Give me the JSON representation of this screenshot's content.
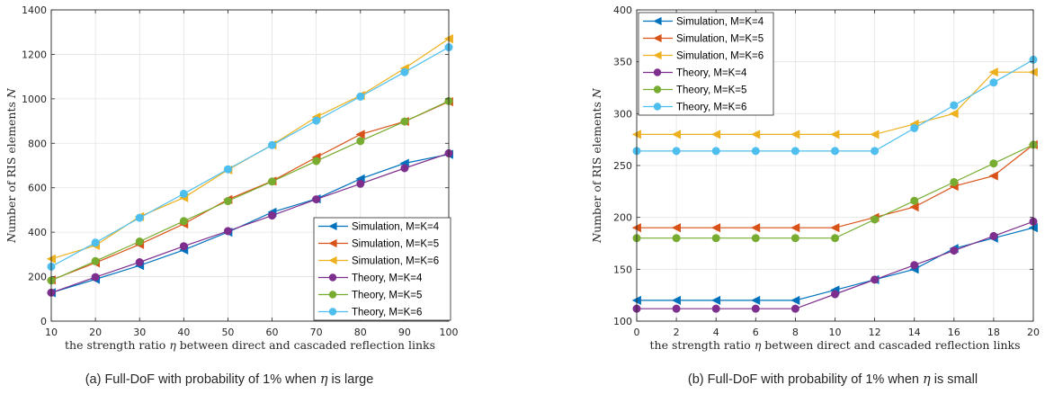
{
  "chart_data": [
    {
      "type": "line",
      "caption": "(a) Full-DoF with probability of 1% when η is large",
      "xlabel": "the strength ratio η between direct and cascaded reflection links",
      "ylabel": "Number of RIS elements N",
      "xlim": [
        10,
        100
      ],
      "ylim": [
        0,
        1400
      ],
      "xticks": [
        10,
        20,
        30,
        40,
        50,
        60,
        70,
        80,
        90,
        100
      ],
      "yticks": [
        0,
        200,
        400,
        600,
        800,
        1000,
        1200,
        1400
      ],
      "grid": true,
      "legend_position": "bottom-right",
      "x": [
        10,
        20,
        30,
        40,
        50,
        60,
        70,
        80,
        90,
        100
      ],
      "series": [
        {
          "name": "Simulation, M=K=4",
          "marker": "triangle-left",
          "color": "#0072BD",
          "values": [
            128,
            188,
            250,
            320,
            400,
            490,
            550,
            640,
            710,
            750
          ]
        },
        {
          "name": "Simulation, M=K=5",
          "marker": "triangle-left",
          "color": "#D95319",
          "values": [
            185,
            262,
            345,
            437,
            547,
            630,
            737,
            840,
            898,
            987
          ]
        },
        {
          "name": "Simulation, M=K=6",
          "marker": "triangle-left",
          "color": "#EDB120",
          "values": [
            280,
            340,
            470,
            555,
            680,
            793,
            918,
            1015,
            1137,
            1270
          ]
        },
        {
          "name": "Theory, M=K=4",
          "marker": "circle",
          "color": "#7E2F8E",
          "values": [
            128,
            198,
            265,
            337,
            405,
            475,
            548,
            618,
            688,
            755
          ]
        },
        {
          "name": "Theory, M=K=5",
          "marker": "circle",
          "color": "#77AC30",
          "values": [
            183,
            270,
            358,
            450,
            540,
            628,
            720,
            810,
            898,
            990
          ]
        },
        {
          "name": "Theory, M=K=6",
          "marker": "circle",
          "color": "#4DBEEE",
          "values": [
            245,
            353,
            465,
            573,
            683,
            792,
            902,
            1010,
            1120,
            1232
          ]
        }
      ]
    },
    {
      "type": "line",
      "caption": "(b) Full-DoF with probability of 1% when η is small",
      "xlabel": "the strength ratio η between direct and cascaded reflection links",
      "ylabel": "Number of RIS elements N",
      "xlim": [
        0,
        20
      ],
      "ylim": [
        100,
        400
      ],
      "xticks": [
        0,
        2,
        4,
        6,
        8,
        10,
        12,
        14,
        16,
        18,
        20
      ],
      "yticks": [
        100,
        150,
        200,
        250,
        300,
        350,
        400
      ],
      "grid": true,
      "legend_position": "top-left",
      "x": [
        0,
        2,
        4,
        6,
        8,
        10,
        12,
        14,
        16,
        18,
        20
      ],
      "series": [
        {
          "name": "Simulation, M=K=4",
          "marker": "triangle-left",
          "color": "#0072BD",
          "values": [
            120,
            120,
            120,
            120,
            120,
            130,
            140,
            150,
            170,
            180,
            190
          ]
        },
        {
          "name": "Simulation, M=K=5",
          "marker": "triangle-left",
          "color": "#D95319",
          "values": [
            190,
            190,
            190,
            190,
            190,
            190,
            200,
            210,
            230,
            240,
            270
          ]
        },
        {
          "name": "Simulation, M=K=6",
          "marker": "triangle-left",
          "color": "#EDB120",
          "values": [
            280,
            280,
            280,
            280,
            280,
            280,
            280,
            290,
            300,
            340,
            340
          ]
        },
        {
          "name": "Theory, M=K=4",
          "marker": "circle",
          "color": "#7E2F8E",
          "values": [
            112,
            112,
            112,
            112,
            112,
            126,
            140,
            154,
            168,
            182,
            196
          ]
        },
        {
          "name": "Theory, M=K=5",
          "marker": "circle",
          "color": "#77AC30",
          "values": [
            180,
            180,
            180,
            180,
            180,
            180,
            198,
            216,
            234,
            252,
            270
          ]
        },
        {
          "name": "Theory, M=K=6",
          "marker": "circle",
          "color": "#4DBEEE",
          "values": [
            264,
            264,
            264,
            264,
            264,
            264,
            264,
            286,
            308,
            330,
            352
          ]
        }
      ]
    }
  ]
}
